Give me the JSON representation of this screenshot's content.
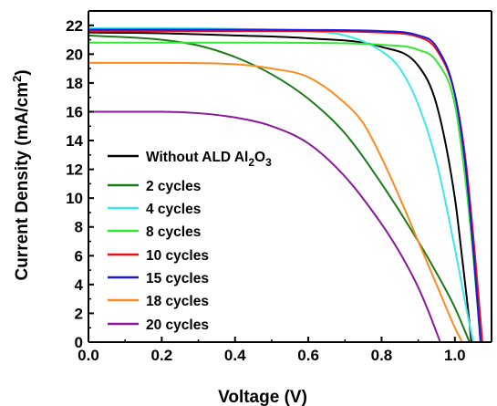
{
  "chart_data": {
    "type": "line",
    "title": "",
    "xlabel": "Voltage (V)",
    "ylabel_main": "Current Density (mA/cm",
    "ylabel_sup": "2",
    "ylabel_close": ")",
    "xlim": [
      0,
      1.1
    ],
    "ylim": [
      0,
      23
    ],
    "x_ticks": [
      "0.0",
      "0.2",
      "0.4",
      "0.6",
      "0.8",
      "1.0"
    ],
    "y_ticks": [
      "0",
      "2",
      "4",
      "6",
      "8",
      "10",
      "12",
      "14",
      "16",
      "18",
      "20",
      "22"
    ],
    "grid": false,
    "legend_position": "center-left",
    "series": [
      {
        "name": "Without ALD Al2O3",
        "legend_parts": [
          "Without ALD Al",
          "2",
          "O",
          "3"
        ],
        "color": "#000000",
        "jsc": 21.5,
        "voc": 1.045,
        "points": [
          [
            0,
            21.5
          ],
          [
            0.2,
            21.45
          ],
          [
            0.4,
            21.3
          ],
          [
            0.6,
            21.1
          ],
          [
            0.8,
            20.5
          ],
          [
            0.9,
            19.2
          ],
          [
            0.95,
            16.5
          ],
          [
            1.0,
            10.0
          ],
          [
            1.02,
            5.8
          ],
          [
            1.035,
            2.5
          ],
          [
            1.045,
            0
          ]
        ]
      },
      {
        "name": "2 cycles",
        "color": "#1a7a1a",
        "jsc": 21.3,
        "voc": 1.04,
        "points": [
          [
            0,
            21.3
          ],
          [
            0.2,
            21.0
          ],
          [
            0.3,
            20.6
          ],
          [
            0.4,
            19.8
          ],
          [
            0.5,
            18.6
          ],
          [
            0.6,
            16.9
          ],
          [
            0.7,
            14.5
          ],
          [
            0.8,
            11.0
          ],
          [
            0.9,
            7.0
          ],
          [
            0.95,
            4.8
          ],
          [
            1.0,
            2.4
          ],
          [
            1.04,
            0
          ]
        ]
      },
      {
        "name": "4 cycles",
        "color": "#3ee8e8",
        "jsc": 21.8,
        "voc": 1.05,
        "points": [
          [
            0,
            21.8
          ],
          [
            0.2,
            21.8
          ],
          [
            0.4,
            21.75
          ],
          [
            0.6,
            21.6
          ],
          [
            0.7,
            21.3
          ],
          [
            0.8,
            20.2
          ],
          [
            0.85,
            19.0
          ],
          [
            0.9,
            16.5
          ],
          [
            0.95,
            12.5
          ],
          [
            1.0,
            6.5
          ],
          [
            1.03,
            2.5
          ],
          [
            1.05,
            0
          ]
        ]
      },
      {
        "name": "8 cycles",
        "color": "#33e833",
        "jsc": 20.8,
        "voc": 1.07,
        "points": [
          [
            0,
            20.8
          ],
          [
            0.2,
            20.8
          ],
          [
            0.4,
            20.8
          ],
          [
            0.6,
            20.78
          ],
          [
            0.8,
            20.65
          ],
          [
            0.9,
            20.3
          ],
          [
            0.95,
            19.5
          ],
          [
            1.0,
            16.5
          ],
          [
            1.03,
            11.0
          ],
          [
            1.05,
            6.0
          ],
          [
            1.07,
            0
          ]
        ]
      },
      {
        "name": "10 cycles",
        "color": "#e8101a",
        "jsc": 21.6,
        "voc": 1.075,
        "points": [
          [
            0,
            21.6
          ],
          [
            0.2,
            21.6
          ],
          [
            0.4,
            21.6
          ],
          [
            0.6,
            21.6
          ],
          [
            0.8,
            21.5
          ],
          [
            0.9,
            21.2
          ],
          [
            0.95,
            20.3
          ],
          [
            1.0,
            17.2
          ],
          [
            1.03,
            12.5
          ],
          [
            1.055,
            6.0
          ],
          [
            1.075,
            0
          ]
        ]
      },
      {
        "name": "15 cycles",
        "color": "#1a1ad8",
        "jsc": 21.7,
        "voc": 1.07,
        "points": [
          [
            0,
            21.7
          ],
          [
            0.2,
            21.7
          ],
          [
            0.4,
            21.7
          ],
          [
            0.6,
            21.68
          ],
          [
            0.8,
            21.6
          ],
          [
            0.9,
            21.3
          ],
          [
            0.95,
            20.5
          ],
          [
            1.0,
            17.2
          ],
          [
            1.03,
            12.0
          ],
          [
            1.05,
            6.5
          ],
          [
            1.07,
            0
          ]
        ]
      },
      {
        "name": "18 cycles",
        "color": "#ff8a1f",
        "jsc": 19.4,
        "voc": 1.02,
        "points": [
          [
            0,
            19.4
          ],
          [
            0.2,
            19.4
          ],
          [
            0.4,
            19.3
          ],
          [
            0.5,
            19.0
          ],
          [
            0.6,
            18.4
          ],
          [
            0.7,
            16.6
          ],
          [
            0.75,
            15.2
          ],
          [
            0.8,
            12.8
          ],
          [
            0.85,
            10.0
          ],
          [
            0.9,
            7.0
          ],
          [
            0.95,
            4.0
          ],
          [
            1.0,
            1.0
          ],
          [
            1.02,
            0
          ]
        ]
      },
      {
        "name": "20 cycles",
        "color": "#8a1a9a",
        "jsc": 16.0,
        "voc": 0.96,
        "points": [
          [
            0,
            16.0
          ],
          [
            0.2,
            16.0
          ],
          [
            0.3,
            15.9
          ],
          [
            0.4,
            15.6
          ],
          [
            0.5,
            15.0
          ],
          [
            0.6,
            13.8
          ],
          [
            0.7,
            11.5
          ],
          [
            0.8,
            8.2
          ],
          [
            0.85,
            6.2
          ],
          [
            0.9,
            3.8
          ],
          [
            0.93,
            2.0
          ],
          [
            0.96,
            0
          ]
        ]
      }
    ]
  }
}
